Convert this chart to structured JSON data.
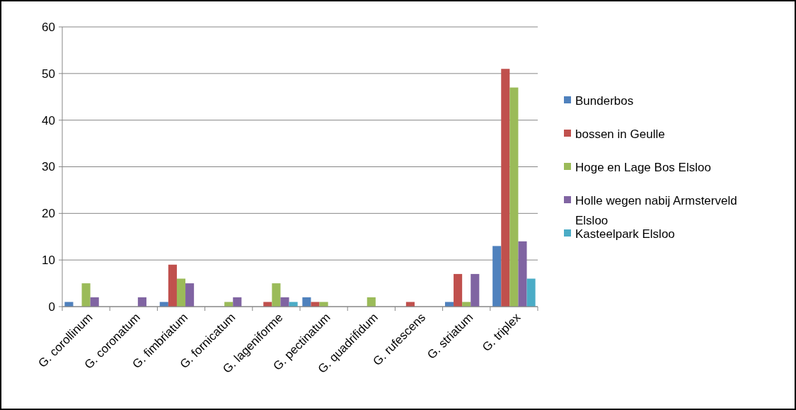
{
  "chart_data": {
    "type": "bar",
    "categories": [
      "G. corollinum",
      "G. coronatum",
      "G. fimbriatum",
      "G. fornicatum",
      "G. lageniforme",
      "G. pectinatum",
      "G. quadrifidum",
      "G. rufescens",
      "G. striatum",
      "G. triplex"
    ],
    "series": [
      {
        "name": "Bunderbos",
        "color": "#4f81bd",
        "values": [
          1,
          0,
          1,
          0,
          0,
          2,
          0,
          0,
          1,
          13
        ]
      },
      {
        "name": "bossen in Geulle",
        "color": "#c0504d",
        "values": [
          0,
          0,
          9,
          0,
          1,
          1,
          0,
          1,
          7,
          51
        ]
      },
      {
        "name": "Hoge en Lage Bos Elsloo",
        "color": "#9bbb59",
        "values": [
          5,
          0,
          6,
          1,
          5,
          1,
          2,
          0,
          1,
          47
        ]
      },
      {
        "name": "Holle wegen nabij Armsterveld Elsloo",
        "color": "#8064a2",
        "values": [
          2,
          2,
          5,
          2,
          2,
          0,
          0,
          0,
          7,
          14
        ]
      },
      {
        "name": "Kasteelpark Elsloo",
        "color": "#4bacc6",
        "values": [
          0,
          0,
          0,
          0,
          1,
          0,
          0,
          0,
          0,
          6
        ]
      }
    ],
    "ylim": [
      0,
      60
    ],
    "yticks": [
      0,
      10,
      20,
      30,
      40,
      50,
      60
    ],
    "grid": "y",
    "legend": "right"
  }
}
